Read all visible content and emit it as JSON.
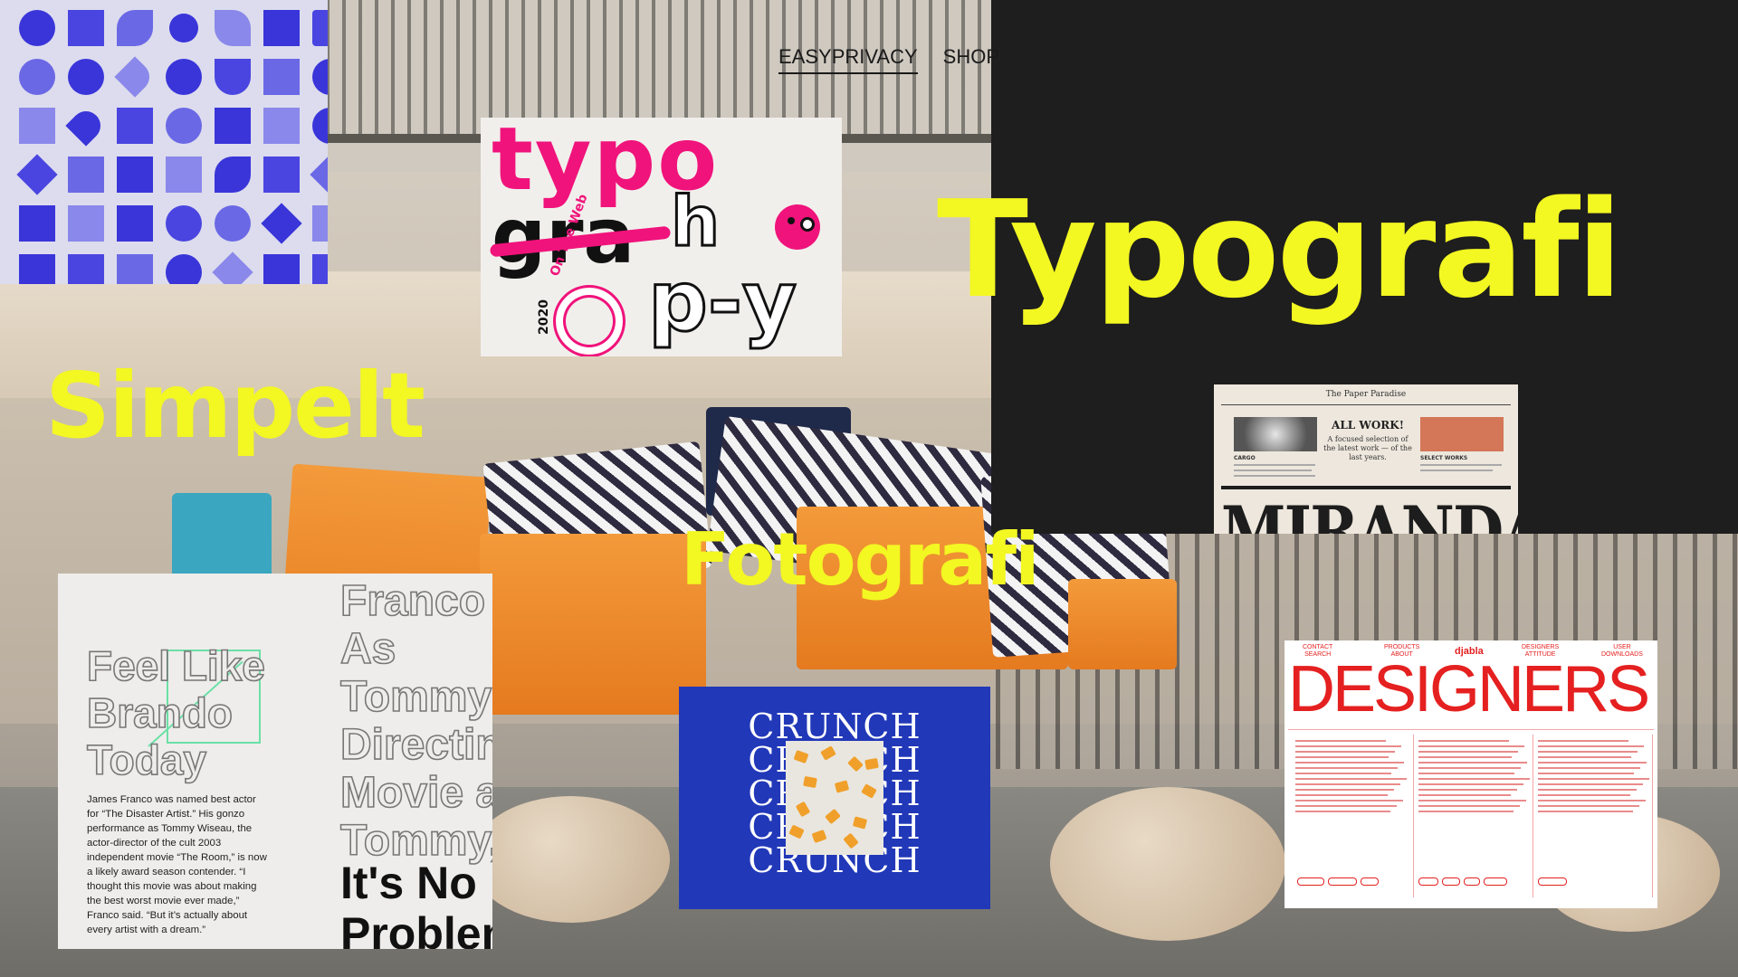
{
  "nav": {
    "items": [
      {
        "label": "EASYPRIVACY",
        "active": true
      },
      {
        "label": "SHOP",
        "active": false
      }
    ]
  },
  "headings": {
    "typografi": "Typografi",
    "simpelt": "Simpelt",
    "fotografi": "Fotografi"
  },
  "cards": {
    "typography": {
      "line1": "typo",
      "line2": "gra",
      "line3": "h",
      "line4": "p-y",
      "badge_text": "On The Web",
      "badge_year": "2020"
    },
    "newspaper": {
      "masthead": "The Paper Paradise",
      "headline": "ALL WORK!",
      "subhead": "A focused selection of the latest work — of the last years.",
      "label_left": "CARGO",
      "label_right": "SELECT WORKS",
      "big": "MIRANDA"
    },
    "franco": {
      "left_title": [
        "Feel Like",
        "Brando",
        "Today"
      ],
      "body": "James Franco was named best actor for “The Disaster Artist.” His gonzo performance as Tommy Wiseau, the actor-director of the cult 2003 independent movie “The Room,” is now a likely award season contender. “I thought this movie was about making the best worst movie ever made,” Franco said. “But it’s actually about every artist with a dream.”",
      "right_title": [
        "Franco",
        "As",
        "Tommy",
        "Directin",
        "Movie a",
        "Tommy,"
      ],
      "right_bold": [
        "It's No",
        "Problem"
      ]
    },
    "crunch": {
      "lines": [
        "CRUNCH",
        "CRUNCH",
        "CRUNCH",
        "CRUNCH",
        "CRUNCH"
      ]
    },
    "designers": {
      "nav_left": "CONTACT\nSEARCH",
      "nav_mid": "PRODUCTS\nABOUT",
      "brand": "djabla",
      "nav_right": "DESIGNERS\nATTITUDE",
      "nav_far": "USER\nDOWNLOADS",
      "title": "DESIGNERS"
    }
  },
  "colors": {
    "heading_yellow": "#f3f722",
    "dark_panel": "#1e1e1e",
    "icon_blue": "#3a35d9",
    "typo_pink": "#f0137b",
    "crunch_blue": "#2138b8",
    "designers_red": "#e52020"
  }
}
